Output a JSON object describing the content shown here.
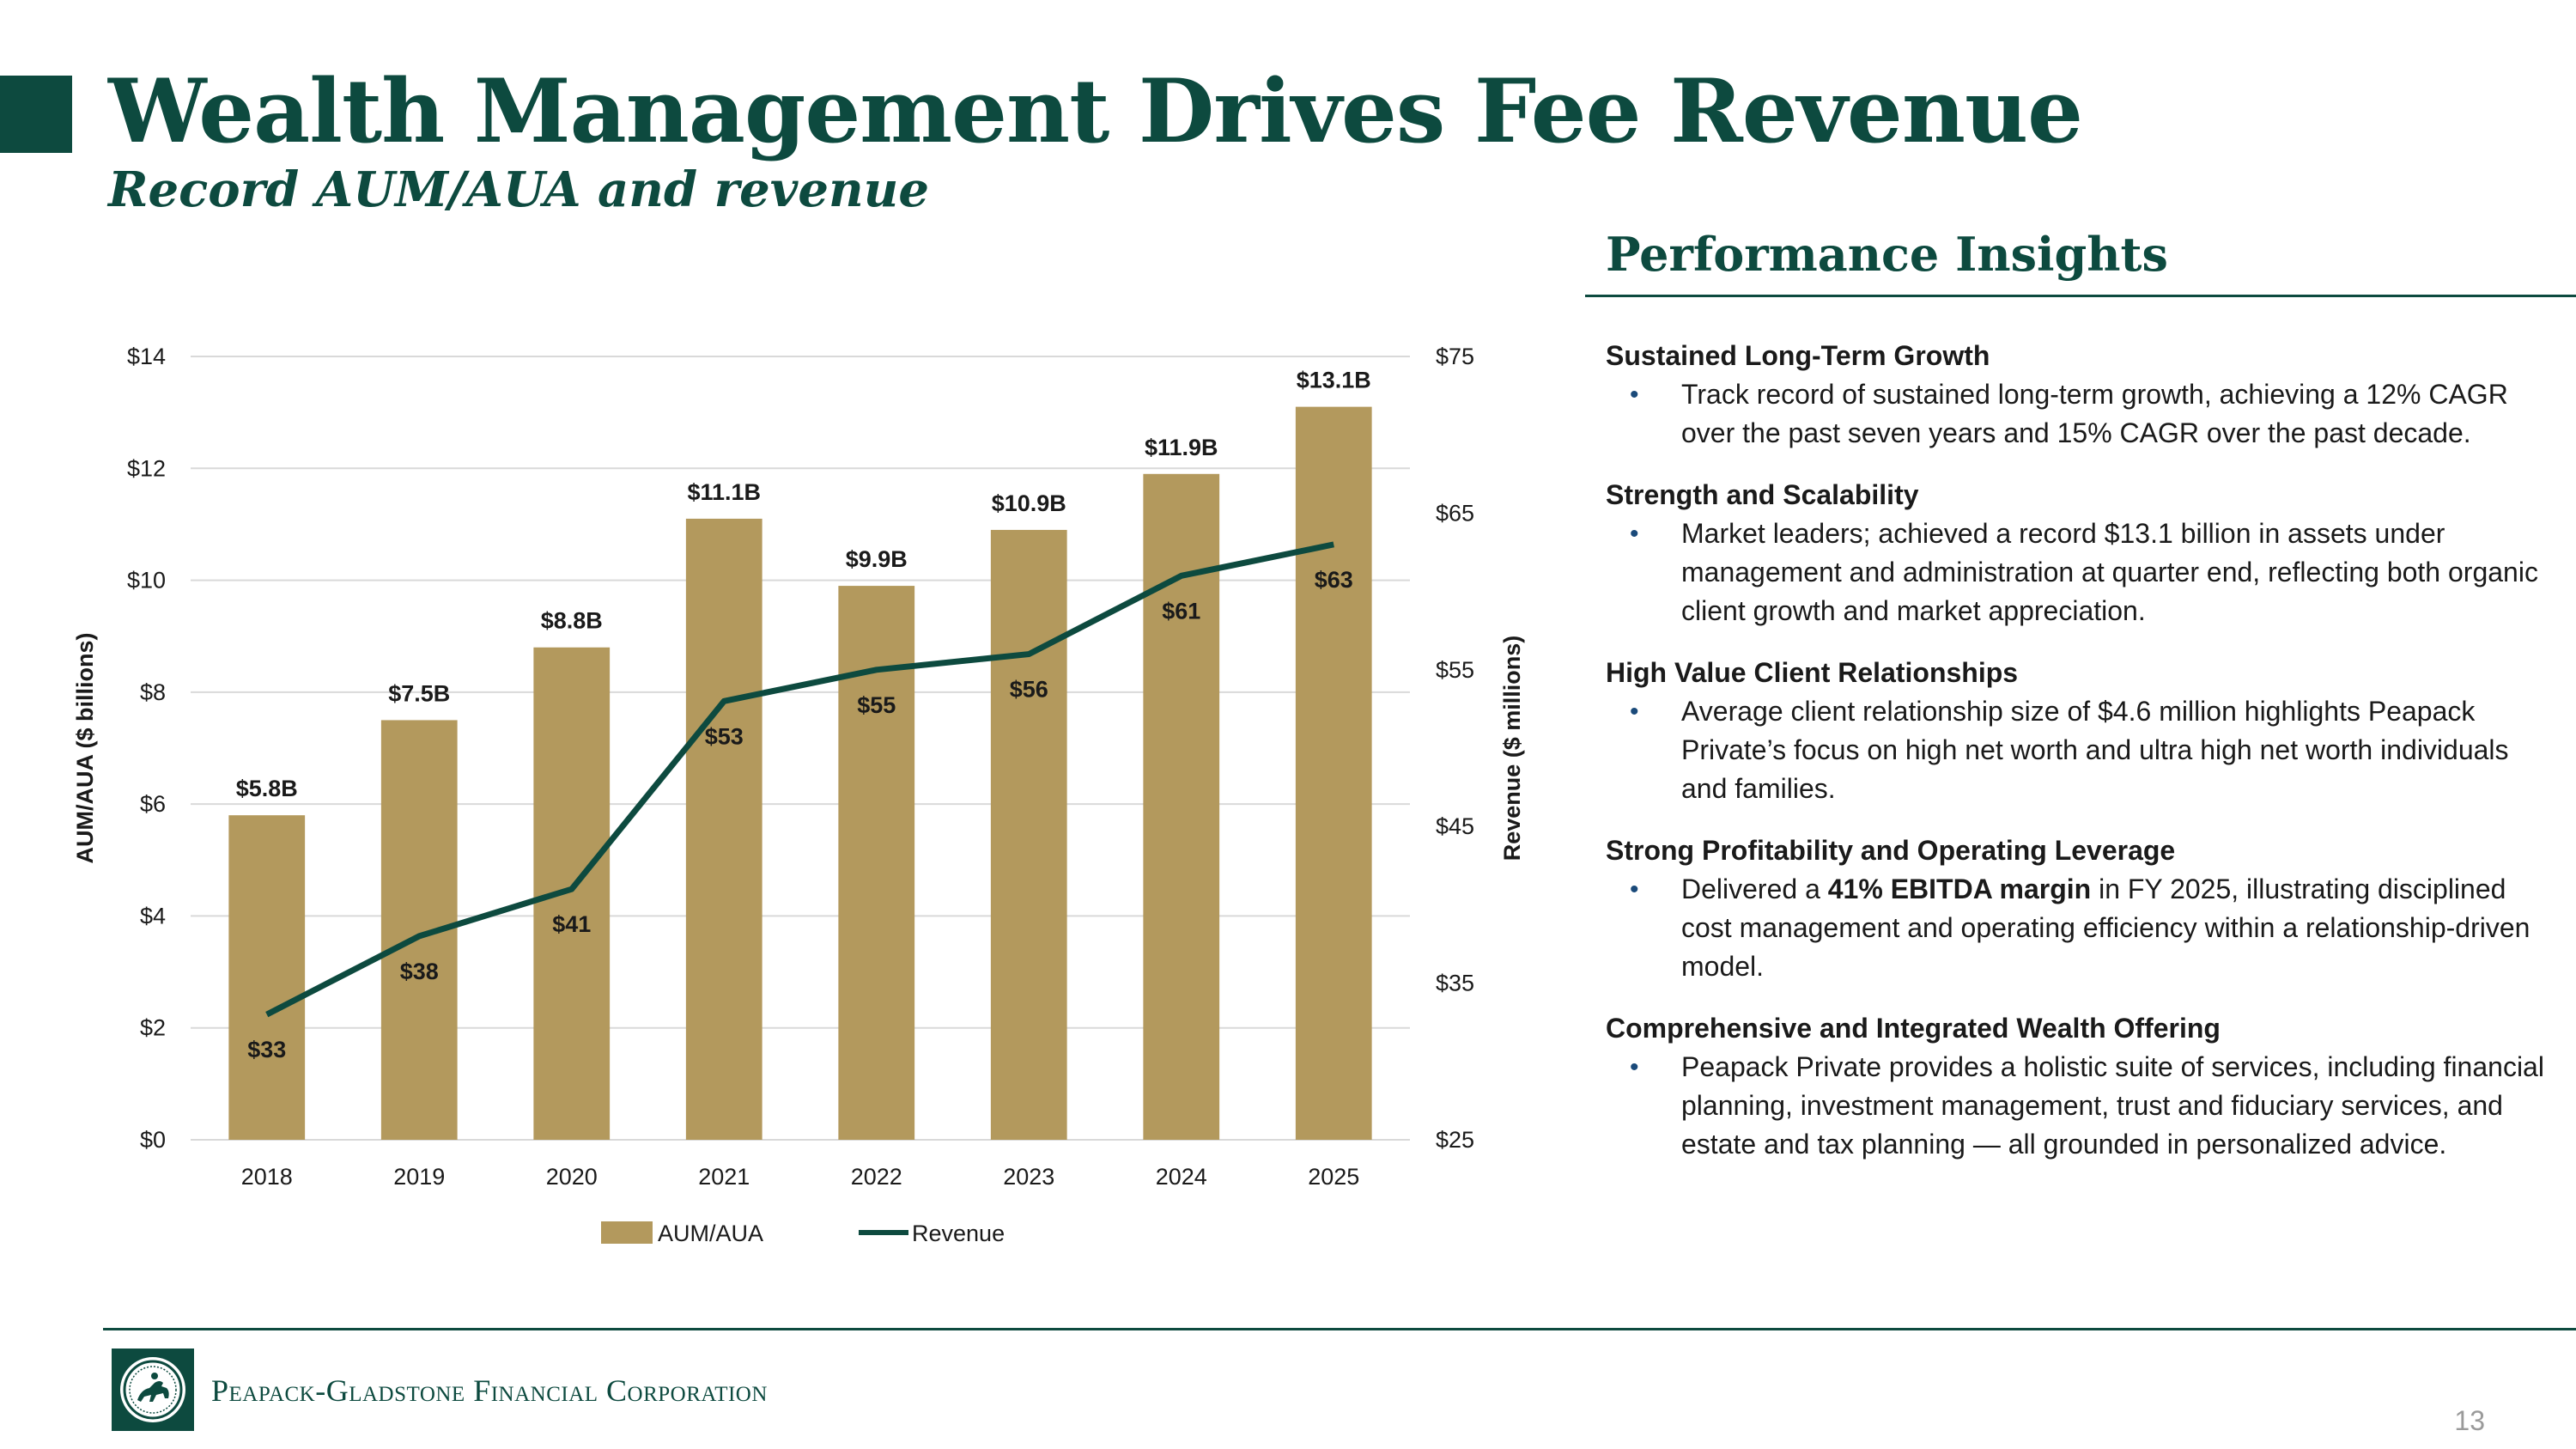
{
  "slide": {
    "title": "Wealth Management Drives Fee Revenue",
    "subtitle": "Record AUM/AUA and revenue",
    "page_number": "13"
  },
  "colors": {
    "brand_green": "#0d4a3f",
    "bar_gold": "#b3995d",
    "grid": "#d9d9d9"
  },
  "chart_data": {
    "type": "bar",
    "categories": [
      "2018",
      "2019",
      "2020",
      "2021",
      "2022",
      "2023",
      "2024",
      "2025"
    ],
    "series": [
      {
        "name": "AUM/AUA",
        "type": "bar",
        "axis": "left",
        "values": [
          5.8,
          7.5,
          8.8,
          11.1,
          9.9,
          10.9,
          11.9,
          13.1
        ],
        "labels": [
          "$5.8B",
          "$7.5B",
          "$8.8B",
          "$11.1B",
          "$9.9B",
          "$10.9B",
          "$11.9B",
          "$13.1B"
        ]
      },
      {
        "name": "Revenue",
        "type": "line",
        "axis": "right",
        "values": [
          33,
          38,
          41,
          53,
          55,
          56,
          61,
          63
        ],
        "labels": [
          "$33",
          "$38",
          "$41",
          "$53",
          "$55",
          "$56",
          "$61",
          "$63"
        ]
      }
    ],
    "ylabel": "AUM/AUA ($ billions)",
    "y2label": "Revenue ($ millions)",
    "ylim": [
      0,
      14
    ],
    "y2lim": [
      25,
      75
    ],
    "yticks": [
      "$0",
      "$2",
      "$4",
      "$6",
      "$8",
      "$10",
      "$12",
      "$14"
    ],
    "y2ticks": [
      "$25",
      "$35",
      "$45",
      "$55",
      "$65",
      "$75"
    ],
    "grid": true,
    "legend_position": "bottom"
  },
  "insights": {
    "heading": "Performance Insights",
    "items": [
      {
        "title": "Sustained Long-Term Growth",
        "body": "Track record of sustained long-term growth, achieving a 12% CAGR over the past seven years and 15% CAGR over the past decade."
      },
      {
        "title": "Strength and Scalability",
        "body": "Market leaders; achieved a record $13.1 billion in assets under management and administration at quarter end, reflecting both organic client growth and market appreciation."
      },
      {
        "title": "High Value Client Relationships",
        "body": "Average client relationship size of $4.6 million highlights Peapack Private’s focus on high net worth and ultra high net worth individuals and families."
      },
      {
        "title": "Strong Profitability and Operating Leverage",
        "body_pre": "Delivered a ",
        "body_bold": "41% EBITDA margin",
        "body_post": " in FY 2025, illustrating disciplined cost management and operating efficiency within a relationship-driven model."
      },
      {
        "title": "Comprehensive and Integrated Wealth Offering",
        "body": "Peapack Private provides a holistic suite of services, including financial planning, investment management, trust and fiduciary services, and estate and tax planning — all grounded in personalized advice."
      }
    ]
  },
  "footer": {
    "company_name": "Peapack-Gladstone Financial Corporation",
    "logo_icon": "horse-rider-seal-icon"
  }
}
